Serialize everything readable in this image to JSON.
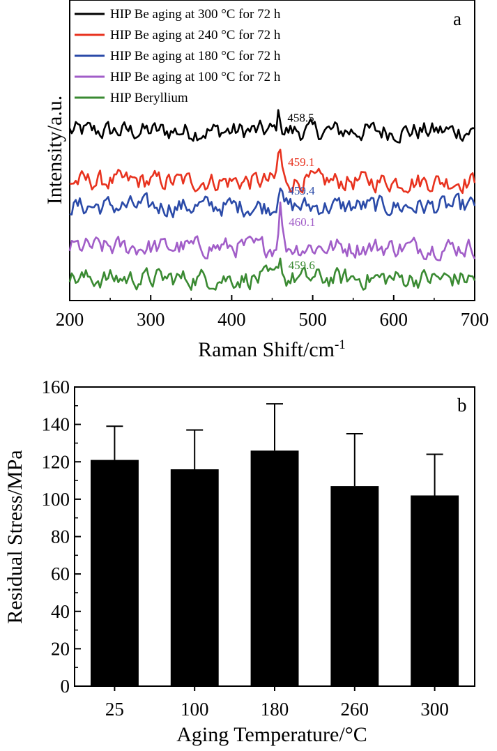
{
  "chart_data": [
    {
      "type": "line",
      "panel_label": "a",
      "xlabel_main": "Raman Shift/cm",
      "xlabel_sup": "-1",
      "ylabel": "Intensity/a.u.",
      "xlim": [
        200,
        700
      ],
      "x_ticks": [
        200,
        300,
        400,
        500,
        600,
        700
      ],
      "x_tick_labels": [
        "200",
        "300",
        "400",
        "500",
        "600",
        "700"
      ],
      "y_ticks_shown": false,
      "legend_position": "top-left",
      "series": [
        {
          "name": "HIP Be aging at 300 °C for 72 h",
          "color": "#000000",
          "peak_x": 458.5,
          "peak_label": "458.5",
          "offset": 5,
          "peak_height": 0.55
        },
        {
          "name": "HIP Be aging at 240 °C for 72 h",
          "color": "#e8321e",
          "peak_x": 459.1,
          "peak_label": "459.1",
          "offset": 3.4,
          "peak_height": 1.05
        },
        {
          "name": "HIP Be aging at 180 °C for 72 h",
          "color": "#2a4aa8",
          "peak_x": 459.4,
          "peak_label": "459.4",
          "offset": 2.6,
          "peak_height": 0.85
        },
        {
          "name": "HIP Be aging at 100 °C for 72 h",
          "color": "#a15dc8",
          "peak_x": 460.1,
          "peak_label": "460.1",
          "offset": 1.3,
          "peak_height": 1.4
        },
        {
          "name": "HIP Beryllium",
          "color": "#3a8a32",
          "peak_x": 459.6,
          "peak_label": "459.6",
          "offset": 0.3,
          "peak_height": 0.7
        }
      ]
    },
    {
      "type": "bar",
      "panel_label": "b",
      "xlabel": "Aging Temperature/°C",
      "ylabel": "Residual Stress/MPa",
      "ylim": [
        0,
        160
      ],
      "y_ticks": [
        0,
        20,
        40,
        60,
        80,
        100,
        120,
        140,
        160
      ],
      "y_tick_labels": [
        "0",
        "20",
        "40",
        "60",
        "80",
        "100",
        "120",
        "140",
        "160"
      ],
      "categories": [
        "25",
        "100",
        "180",
        "260",
        "300"
      ],
      "values": [
        121,
        116,
        126,
        107,
        102
      ],
      "error_upper": [
        139,
        137,
        151,
        135,
        124
      ],
      "bar_color": "#000000"
    }
  ]
}
